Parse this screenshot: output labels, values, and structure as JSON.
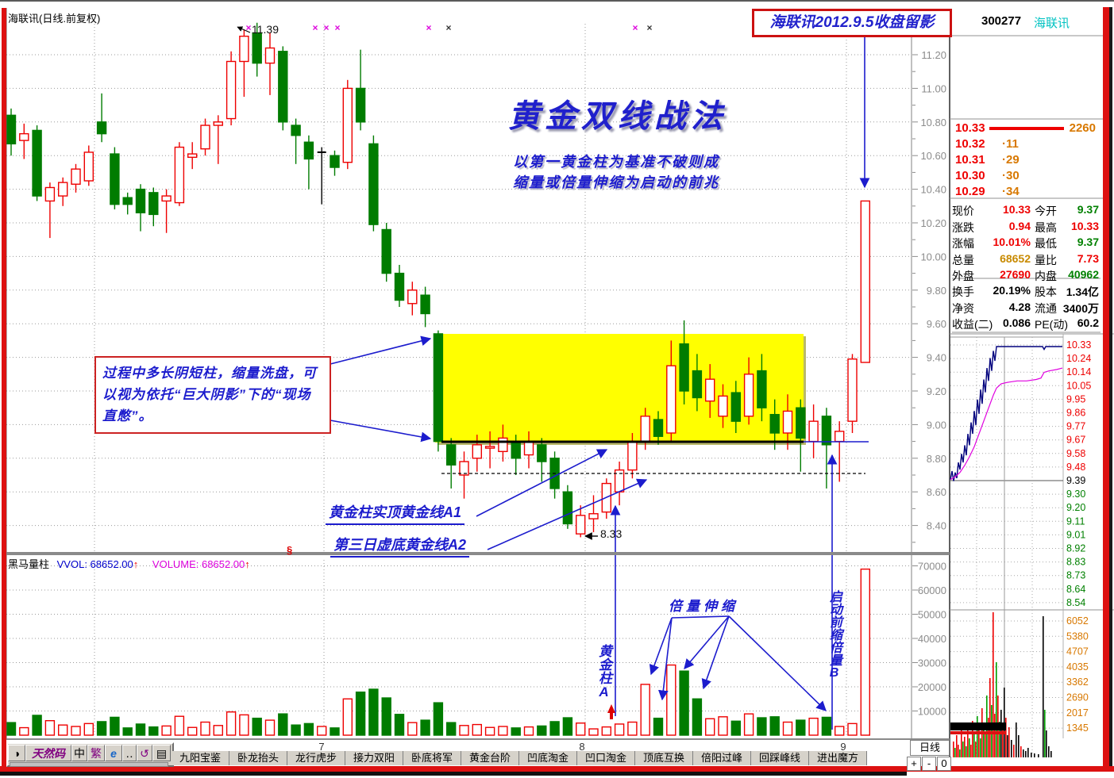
{
  "colors": {
    "up": "#ee0000",
    "down": "#007c00",
    "blue": "#1c1ccd",
    "magenta": "#dd00dd",
    "orange": "#d87800",
    "cyan": "#00c2c2",
    "gray_tick": "#8c8c8c",
    "yellow": "#ffff00",
    "banner_red": "#cc1111",
    "black": "#000000"
  },
  "header": {
    "chart_title": "海联讯(日线.前复权)",
    "snapshot_banner": "海联讯2012.9.5收盘留影",
    "stock_code": "300277",
    "stock_name": "海联讯"
  },
  "strategy": {
    "title": "黄金双线战法",
    "subtitle1": "以第一黄金柱为基准不破则成",
    "subtitle2": "缩量或倍量伸缩为启动的前兆",
    "note": "过程中多长阴短柱，缩量洗盘，可以视为依托“巨大阴影”下的“现场直憋”。",
    "a1_label": "黄金柱实顶黄金线A1",
    "a2_label": "第三日虚底黄金线A2",
    "double_volume_label": "倍量伸缩",
    "golden_column_label": "黄金柱A",
    "launch_label": "启动前缩倍量B",
    "peak_price": "11.39",
    "key_low": "8.33",
    "section_marker": "§"
  },
  "quote_panel": {
    "sell_queue": [
      {
        "price": "10.33",
        "amount": "2260"
      },
      {
        "price": "10.32",
        "amount": "11"
      },
      {
        "price": "10.31",
        "amount": "29"
      },
      {
        "price": "10.30",
        "amount": "30"
      },
      {
        "price": "10.29",
        "amount": "34"
      }
    ],
    "fields": [
      [
        "现价",
        "10.33",
        "up"
      ],
      [
        "今开",
        "9.37",
        "down"
      ],
      [
        "涨跌",
        "0.94",
        "up"
      ],
      [
        "最高",
        "10.33",
        "up"
      ],
      [
        "涨幅",
        "10.01%",
        "up"
      ],
      [
        "最低",
        "9.37",
        "down"
      ],
      [
        "总量",
        "68652",
        "orange"
      ],
      [
        "量比",
        "7.73",
        "up"
      ],
      [
        "外盘",
        "27690",
        "up"
      ],
      [
        "内盘",
        "40962",
        "down"
      ],
      [
        "换手",
        "20.19%",
        "black"
      ],
      [
        "股本",
        "1.34亿",
        "black"
      ],
      [
        "净资",
        "4.28",
        "black"
      ],
      [
        "流通",
        "3400万",
        "black"
      ],
      [
        "收益(二)",
        "0.086",
        "black"
      ],
      [
        "PE(动)",
        "60.2",
        "black"
      ]
    ]
  },
  "axis": {
    "price_ticks": [
      "11.20",
      "11.00",
      "10.80",
      "10.60",
      "10.40",
      "10.20",
      "10.00",
      "9.80",
      "9.60",
      "9.40",
      "9.20",
      "9.00",
      "8.80",
      "8.60",
      "8.40"
    ],
    "volume_ticks": [
      "70000",
      "60000",
      "50000",
      "40000",
      "30000",
      "20000",
      "10000"
    ],
    "month_labels": [
      "7",
      "8",
      "9"
    ]
  },
  "volume_pane": {
    "indicator": "黑马量柱",
    "vvol": "VVOL: 68652.00",
    "volume": "VOLUME: 68652.00",
    "arrow": "↑"
  },
  "minichart": {
    "price_labels": [
      [
        "10.33",
        "r"
      ],
      [
        "10.24",
        "r"
      ],
      [
        "10.14",
        "r"
      ],
      [
        "10.05",
        "r"
      ],
      [
        "9.95",
        "r"
      ],
      [
        "9.86",
        "r"
      ],
      [
        "9.77",
        "r"
      ],
      [
        "9.67",
        "r"
      ],
      [
        "9.58",
        "r"
      ],
      [
        "9.48",
        "r"
      ],
      [
        "9.39",
        "k"
      ],
      [
        "9.30",
        "g"
      ],
      [
        "9.20",
        "g"
      ],
      [
        "9.11",
        "g"
      ],
      [
        "9.01",
        "g"
      ],
      [
        "8.92",
        "g"
      ],
      [
        "8.83",
        "g"
      ],
      [
        "8.73",
        "g"
      ],
      [
        "8.64",
        "g"
      ],
      [
        "8.54",
        "g"
      ]
    ],
    "volume_labels": [
      "6052",
      "5380",
      "4707",
      "4035",
      "3362",
      "2690",
      "2017",
      "1345"
    ],
    "price_series": [
      [
        0,
        9.4
      ],
      [
        2,
        9.46
      ],
      [
        4,
        9.39
      ],
      [
        6,
        9.45
      ],
      [
        8,
        9.41
      ],
      [
        10,
        9.52
      ],
      [
        12,
        9.47
      ],
      [
        14,
        9.58
      ],
      [
        16,
        9.52
      ],
      [
        18,
        9.64
      ],
      [
        20,
        9.57
      ],
      [
        22,
        9.72
      ],
      [
        24,
        9.64
      ],
      [
        26,
        9.8
      ],
      [
        28,
        9.72
      ],
      [
        30,
        9.88
      ],
      [
        32,
        9.78
      ],
      [
        34,
        9.96
      ],
      [
        36,
        9.86
      ],
      [
        38,
        10.03
      ],
      [
        40,
        9.93
      ],
      [
        42,
        10.1
      ],
      [
        44,
        10.01
      ],
      [
        46,
        10.18
      ],
      [
        48,
        10.09
      ],
      [
        50,
        10.25
      ],
      [
        52,
        10.16
      ],
      [
        54,
        10.3
      ],
      [
        56,
        10.23
      ],
      [
        58,
        10.33
      ],
      [
        116,
        10.33
      ],
      [
        118,
        10.31
      ],
      [
        120,
        10.33
      ],
      [
        141,
        10.33
      ]
    ],
    "avg_series": [
      [
        0,
        9.4
      ],
      [
        6,
        9.42
      ],
      [
        12,
        9.45
      ],
      [
        18,
        9.5
      ],
      [
        24,
        9.56
      ],
      [
        30,
        9.63
      ],
      [
        36,
        9.72
      ],
      [
        42,
        9.81
      ],
      [
        48,
        9.9
      ],
      [
        54,
        9.99
      ],
      [
        58,
        10.04
      ],
      [
        64,
        10.07
      ],
      [
        72,
        10.08
      ],
      [
        84,
        10.09
      ],
      [
        96,
        10.09
      ],
      [
        108,
        10.1
      ],
      [
        114,
        10.11
      ],
      [
        118,
        10.15
      ],
      [
        124,
        10.16
      ],
      [
        134,
        10.17
      ],
      [
        141,
        10.18
      ]
    ],
    "volume_series": [
      [
        3,
        20,
        "r"
      ],
      [
        5,
        12,
        "g"
      ],
      [
        7,
        28,
        "r"
      ],
      [
        9,
        16,
        "r"
      ],
      [
        11,
        10,
        "g"
      ],
      [
        13,
        34,
        "r"
      ],
      [
        15,
        20,
        "g"
      ],
      [
        17,
        26,
        "r"
      ],
      [
        19,
        14,
        "g"
      ],
      [
        21,
        40,
        "r"
      ],
      [
        23,
        24,
        "g"
      ],
      [
        25,
        16,
        "r"
      ],
      [
        27,
        46,
        "r"
      ],
      [
        29,
        30,
        "g"
      ],
      [
        31,
        20,
        "r"
      ],
      [
        33,
        52,
        "g"
      ],
      [
        35,
        34,
        "r"
      ],
      [
        37,
        24,
        "g"
      ],
      [
        39,
        62,
        "r"
      ],
      [
        41,
        42,
        "g"
      ],
      [
        43,
        30,
        "r"
      ],
      [
        45,
        78,
        "g"
      ],
      [
        47,
        50,
        "r"
      ],
      [
        49,
        100,
        "r"
      ],
      [
        51,
        66,
        "g"
      ],
      [
        53,
        183,
        "r"
      ],
      [
        55,
        55,
        "r"
      ],
      [
        57,
        120,
        "g"
      ],
      [
        59,
        78,
        "r"
      ],
      [
        61,
        45,
        "g"
      ],
      [
        63,
        60,
        "k"
      ],
      [
        65,
        35,
        "r"
      ],
      [
        67,
        88,
        "k"
      ],
      [
        69,
        50,
        "r"
      ],
      [
        71,
        28,
        "k"
      ],
      [
        73,
        38,
        "r"
      ],
      [
        76,
        22,
        "k"
      ],
      [
        79,
        16,
        "r"
      ],
      [
        82,
        44,
        "k"
      ],
      [
        85,
        28,
        "k"
      ],
      [
        88,
        14,
        "r"
      ],
      [
        91,
        10,
        "k"
      ],
      [
        94,
        8,
        "k"
      ],
      [
        97,
        12,
        "k"
      ],
      [
        101,
        6,
        "k"
      ],
      [
        105,
        5,
        "k"
      ],
      [
        110,
        4,
        "k"
      ],
      [
        116,
        178,
        "k"
      ],
      [
        118,
        60,
        "g"
      ],
      [
        120,
        34,
        "k"
      ],
      [
        123,
        14,
        "k"
      ],
      [
        126,
        8,
        "k"
      ]
    ]
  },
  "toolbar": {
    "ime_buttons": [
      [
        "ime-logo-icon",
        "◑"
      ],
      [
        "ime-name-button",
        "天然码"
      ],
      [
        "ime-chinese-button",
        "中"
      ],
      [
        "ime-traditional-button",
        "繁"
      ],
      [
        "ime-browser-icon",
        "e"
      ],
      [
        "ime-dots-icon",
        "‥"
      ],
      [
        "ime-loop-icon",
        "↺"
      ],
      [
        "ime-keyboard-icon",
        "▤"
      ]
    ],
    "tabs": [
      "九阳宝鉴",
      "卧龙抬头",
      "龙行虎步",
      "接力双阳",
      "卧底将军",
      "黄金台阶",
      "凹底淘金",
      "凹口淘金",
      "顶底互换",
      "倍阳过峰",
      "回踩峰线",
      "进出魔方"
    ],
    "period_label": "日线",
    "zoom_buttons": [
      "+",
      "-",
      "0"
    ]
  },
  "chart_data": {
    "type": "candlestick",
    "title": "海联讯 日线 前复权",
    "price_unit": "元",
    "price_axis_range": [
      8.3,
      11.45
    ],
    "volume_axis_range": [
      0,
      70000
    ],
    "key_levels": {
      "golden_line_A1": 8.9,
      "golden_line_A2": 8.71,
      "peak_high": 11.39,
      "pullback_low": 8.33,
      "limit_up_close": 10.33,
      "prev_close": 9.39,
      "limit_up_volume": 68652
    },
    "highlight_box": {
      "start_index": 33,
      "end_index": 61,
      "top_price": 9.54,
      "bottom_price": 8.9
    },
    "candles": [
      [
        10.84,
        10.67,
        10.6,
        10.88
      ],
      [
        10.69,
        10.73,
        10.58,
        10.79
      ],
      [
        10.75,
        10.36,
        10.33,
        10.78
      ],
      [
        10.33,
        10.41,
        10.11,
        10.44
      ],
      [
        10.36,
        10.44,
        10.3,
        10.47
      ],
      [
        10.43,
        10.52,
        10.38,
        10.55
      ],
      [
        10.45,
        10.62,
        10.42,
        10.66
      ],
      [
        10.8,
        10.73,
        10.68,
        10.97
      ],
      [
        10.61,
        10.31,
        10.28,
        10.65
      ],
      [
        10.35,
        10.31,
        10.25,
        10.38
      ],
      [
        10.4,
        10.26,
        10.15,
        10.43
      ],
      [
        10.38,
        10.25,
        10.18,
        10.41
      ],
      [
        10.33,
        10.36,
        10.14,
        10.4
      ],
      [
        10.32,
        10.65,
        10.3,
        10.68
      ],
      [
        10.59,
        10.61,
        10.52,
        10.68
      ],
      [
        10.64,
        10.78,
        10.6,
        10.82
      ],
      [
        10.78,
        10.8,
        10.55,
        10.84
      ],
      [
        10.82,
        11.16,
        10.78,
        11.22
      ],
      [
        11.16,
        11.31,
        10.95,
        11.35
      ],
      [
        11.33,
        11.15,
        11.07,
        11.39
      ],
      [
        11.15,
        11.24,
        10.96,
        11.33
      ],
      [
        11.22,
        10.8,
        10.75,
        11.25
      ],
      [
        10.78,
        10.72,
        10.55,
        10.82
      ],
      [
        10.68,
        10.58,
        10.4,
        10.72
      ],
      [
        10.62,
        10.62,
        10.31,
        10.65,
        "k"
      ],
      [
        10.6,
        10.53,
        10.48,
        10.63
      ],
      [
        10.56,
        11.0,
        10.52,
        11.05
      ],
      [
        11.0,
        10.8,
        10.75,
        11.23
      ],
      [
        10.67,
        10.19,
        10.15,
        10.72
      ],
      [
        10.16,
        9.9,
        9.85,
        10.2
      ],
      [
        9.9,
        9.74,
        9.7,
        9.95
      ],
      [
        9.72,
        9.8,
        9.65,
        9.85
      ],
      [
        9.77,
        9.66,
        9.58,
        9.82
      ],
      [
        9.54,
        8.9,
        8.84,
        9.56
      ],
      [
        8.88,
        8.76,
        8.62,
        8.92
      ],
      [
        8.7,
        8.78,
        8.56,
        8.84
      ],
      [
        8.8,
        8.88,
        8.72,
        8.94
      ],
      [
        8.86,
        8.87,
        8.74,
        8.96
      ],
      [
        8.84,
        8.92,
        8.78,
        9.0
      ],
      [
        8.9,
        8.8,
        8.7,
        8.94
      ],
      [
        8.82,
        8.9,
        8.74,
        8.96
      ],
      [
        8.88,
        8.78,
        8.66,
        8.92
      ],
      [
        8.8,
        8.62,
        8.56,
        8.84
      ],
      [
        8.6,
        8.41,
        8.38,
        8.64
      ],
      [
        8.35,
        8.46,
        8.33,
        8.52
      ],
      [
        8.44,
        8.47,
        8.36,
        8.58
      ],
      [
        8.48,
        8.65,
        8.44,
        8.68
      ],
      [
        8.6,
        8.73,
        8.52,
        8.78
      ],
      [
        8.73,
        8.9,
        8.68,
        8.95
      ],
      [
        8.9,
        9.05,
        8.85,
        9.1
      ],
      [
        9.03,
        8.93,
        8.88,
        9.08
      ],
      [
        8.95,
        9.35,
        8.9,
        9.5
      ],
      [
        9.48,
        9.2,
        9.12,
        9.62
      ],
      [
        9.32,
        9.16,
        9.08,
        9.42
      ],
      [
        9.14,
        9.27,
        9.04,
        9.36
      ],
      [
        9.05,
        9.17,
        8.98,
        9.24
      ],
      [
        9.19,
        9.02,
        8.95,
        9.26
      ],
      [
        9.05,
        9.3,
        9.0,
        9.4
      ],
      [
        9.32,
        9.1,
        9.02,
        9.42
      ],
      [
        9.06,
        8.95,
        8.85,
        9.15
      ],
      [
        8.95,
        9.08,
        8.85,
        9.18
      ],
      [
        9.1,
        8.92,
        8.72,
        9.15
      ],
      [
        8.9,
        9.02,
        8.8,
        9.12
      ],
      [
        9.05,
        8.88,
        8.62,
        9.1
      ],
      [
        8.9,
        8.96,
        8.66,
        9.02
      ],
      [
        9.02,
        9.39,
        8.95,
        9.42
      ],
      [
        9.37,
        10.33,
        9.37,
        10.33
      ]
    ],
    "volumes": [
      5200,
      3100,
      8200,
      6000,
      4200,
      3600,
      4800,
      5600,
      7400,
      3000,
      4600,
      3400,
      3800,
      7800,
      3200,
      5400,
      4000,
      9600,
      8400,
      7000,
      6200,
      8800,
      4200,
      4800,
      3600,
      3000,
      15000,
      17800,
      19000,
      15400,
      8600,
      5200,
      6200,
      13400,
      5200,
      4000,
      4400,
      3200,
      3600,
      3000,
      3400,
      3800,
      5600,
      7200,
      5000,
      2600,
      3400,
      4600,
      5400,
      21000,
      7000,
      29000,
      26500,
      15000,
      6800,
      7600,
      5800,
      8800,
      7200,
      7600,
      5400,
      6200,
      7000,
      7400,
      3600,
      4800,
      68652
    ]
  }
}
